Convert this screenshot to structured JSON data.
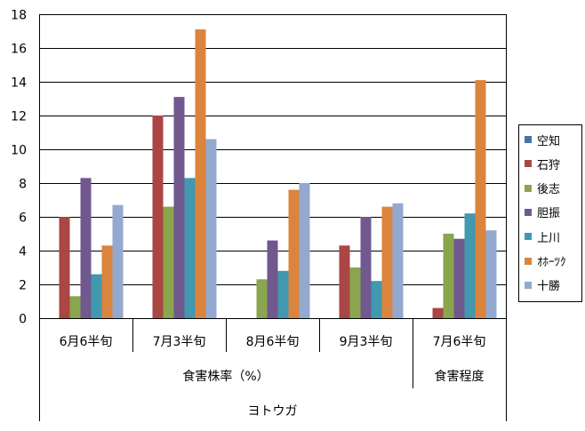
{
  "chart_data": {
    "type": "bar",
    "ylim": [
      0,
      18
    ],
    "yticks": [
      0,
      2,
      4,
      6,
      8,
      10,
      12,
      14,
      16,
      18
    ],
    "grid": true,
    "legend_position": "right",
    "categories": [
      "6月6半旬",
      "7月3半旬",
      "8月6半旬",
      "9月3半旬",
      "7月6半旬"
    ],
    "group_labels": [
      {
        "label": "食害株率（%）",
        "span": [
          0,
          3
        ]
      },
      {
        "label": "食害程度",
        "span": [
          4,
          4
        ]
      }
    ],
    "outer_label": "ヨトウガ",
    "series": [
      {
        "name": "空知",
        "color": "#4572A7",
        "values": [
          0,
          0,
          0,
          0,
          0
        ]
      },
      {
        "name": "石狩",
        "color": "#AA4643",
        "values": [
          6.0,
          12.0,
          0,
          4.3,
          0.6
        ]
      },
      {
        "name": "後志",
        "color": "#89A54E",
        "values": [
          1.3,
          6.6,
          2.3,
          3.0,
          5.0
        ]
      },
      {
        "name": "胆振",
        "color": "#71588F",
        "values": [
          8.3,
          13.1,
          4.6,
          6.0,
          4.7
        ]
      },
      {
        "name": "上川",
        "color": "#4198AF",
        "values": [
          2.6,
          8.3,
          2.8,
          2.2,
          6.2
        ]
      },
      {
        "name": "ｵﾎｰﾂｸ",
        "color": "#DB843D",
        "values": [
          4.3,
          17.1,
          7.6,
          6.6,
          14.1
        ]
      },
      {
        "name": "十勝",
        "color": "#93A9CF",
        "values": [
          6.7,
          10.6,
          8.0,
          6.8,
          5.2
        ]
      }
    ]
  }
}
